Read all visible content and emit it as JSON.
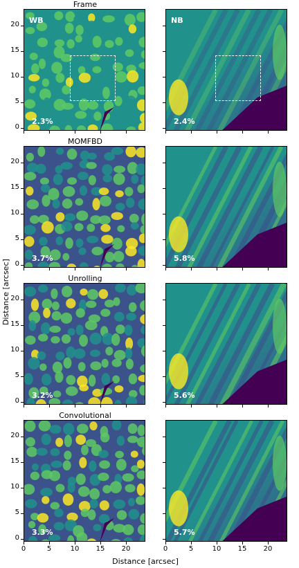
{
  "figure": {
    "xlabel": "Distance [arcsec]",
    "ylabel": "Distance [arcsec]",
    "yticks": [
      "20",
      "15",
      "10",
      "5",
      "0"
    ],
    "xticks": [
      "0",
      "5",
      "10",
      "15",
      "20"
    ],
    "channel_labels": {
      "left": "WB",
      "right": "NB"
    },
    "rows": [
      {
        "title": "Frame",
        "wb_contrast": "2.3%",
        "nb_contrast": "2.4%"
      },
      {
        "title": "MOMFBD",
        "wb_contrast": "3.7%",
        "nb_contrast": "5.8%"
      },
      {
        "title": "Unrolling",
        "wb_contrast": "3.2%",
        "nb_contrast": "5.6%"
      },
      {
        "title": "Convolutional",
        "wb_contrast": "3.3%",
        "nb_contrast": "5.7%"
      }
    ],
    "colormap": [
      "#440154",
      "#3b528b",
      "#21918c",
      "#5ec962",
      "#fde725"
    ]
  }
}
